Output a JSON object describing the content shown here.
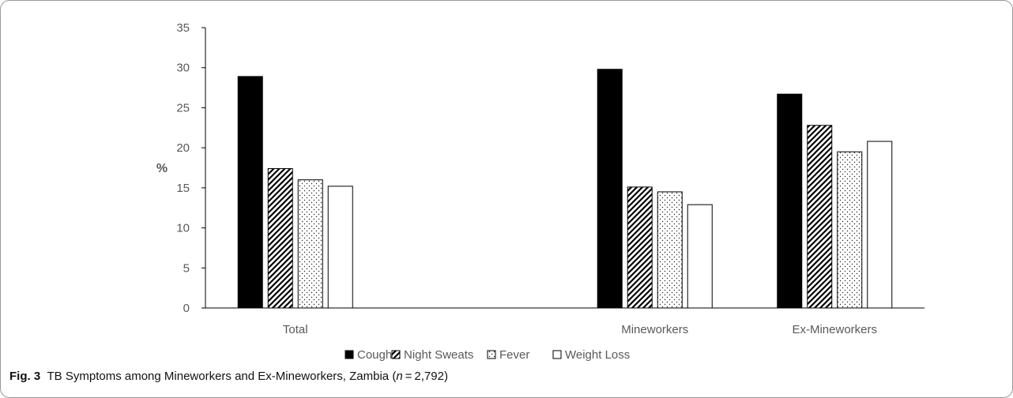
{
  "figure": {
    "label": "Fig. 3",
    "caption_pre": "TB Symptoms among Mineworkers and Ex-Mineworkers, Zambia (",
    "caption_var": "n",
    "caption_post": " = 2,792)"
  },
  "chart_data": {
    "type": "bar",
    "title": "",
    "xlabel": "",
    "ylabel": "%",
    "ylim": [
      0,
      35
    ],
    "yticks": [
      0,
      5,
      10,
      15,
      20,
      25,
      30,
      35
    ],
    "grid": false,
    "legend_position": "bottom",
    "categories": [
      "Total",
      "",
      "Mineworkers",
      "Ex-Mineworkers"
    ],
    "series": [
      {
        "name": "Cough",
        "pattern": "solid",
        "values": [
          28.9,
          null,
          29.8,
          26.7
        ]
      },
      {
        "name": "Night Sweats",
        "pattern": "diagonal-hatch",
        "values": [
          17.4,
          null,
          15.1,
          22.8
        ]
      },
      {
        "name": "Fever",
        "pattern": "dots",
        "values": [
          16.0,
          null,
          14.5,
          19.5
        ]
      },
      {
        "name": "Weight Loss",
        "pattern": "empty",
        "values": [
          15.2,
          null,
          12.9,
          20.8
        ]
      }
    ],
    "colors": {
      "fill": "#000000",
      "outline": "#000000",
      "axis": "#000000",
      "text": "#595959"
    }
  }
}
